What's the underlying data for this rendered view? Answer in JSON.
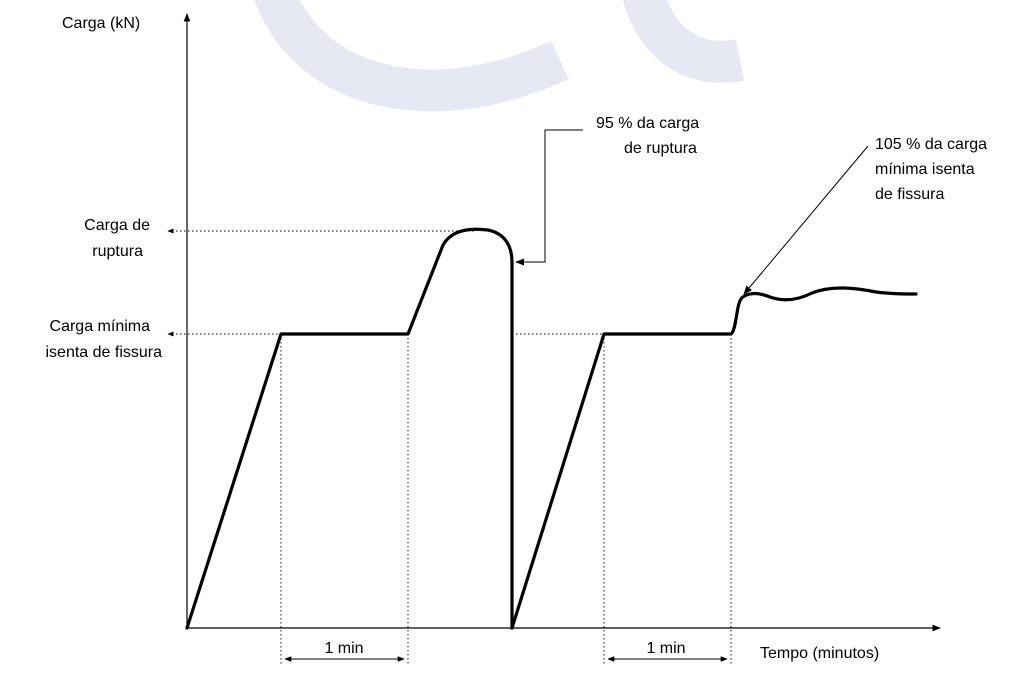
{
  "labels": {
    "y_axis": "Carga (kN)",
    "x_axis": "Tempo (minutos)",
    "carga_ruptura": [
      "Carga de",
      "ruptura"
    ],
    "carga_minima": [
      "Carga mínima",
      "isenta de fissura"
    ],
    "annotation_95": [
      "95 % da carga",
      "de ruptura"
    ],
    "annotation_105": [
      "105 % da carga",
      "mínima isenta",
      "de fissura"
    ],
    "interval_1": "1 min",
    "interval_2": "1 min"
  },
  "colors": {
    "curve": "#000000",
    "watermark": "#e6e8f4"
  }
}
